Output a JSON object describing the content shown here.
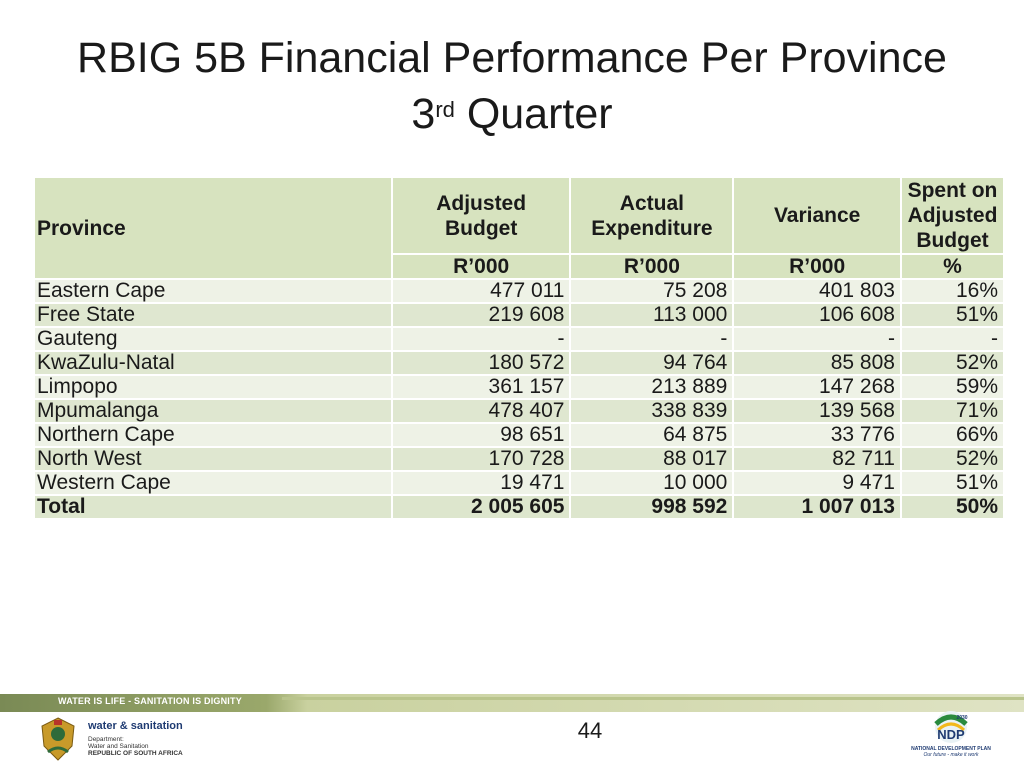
{
  "slide": {
    "title_line1": "RBIG 5B Financial Performance Per Province",
    "title_line2_num": "3",
    "title_line2_sup": "rd",
    "title_line2_rest": " Quarter",
    "page_number": "44"
  },
  "table": {
    "headers": {
      "province": "Province",
      "adjusted_budget": "Adjusted Budget",
      "actual_expenditure": "Actual Expenditure",
      "variance": "Variance",
      "spent_on_budget": "Spent on Adjusted Budget"
    },
    "units": [
      "R’000",
      "R’000",
      "R’000",
      "%"
    ],
    "rows": [
      [
        "Eastern Cape",
        "477 011",
        "75 208",
        "401 803",
        "16%"
      ],
      [
        "Free State",
        "219 608",
        "113 000",
        "106 608",
        "51%"
      ],
      [
        "Gauteng",
        "-",
        "-",
        "-",
        "-"
      ],
      [
        "KwaZulu-Natal",
        "180 572",
        "94 764",
        "85 808",
        "52%"
      ],
      [
        "Limpopo",
        "361 157",
        "213 889",
        "147 268",
        "59%"
      ],
      [
        "Mpumalanga",
        "478 407",
        "338 839",
        "139 568",
        "71%"
      ],
      [
        "Northern Cape",
        "98 651",
        "64 875",
        "33 776",
        "66%"
      ],
      [
        "North West",
        "170 728",
        "88 017",
        "82 711",
        "52%"
      ],
      [
        "Western Cape",
        "19 471",
        "10 000",
        "9 471",
        "51%"
      ]
    ],
    "total": [
      "Total",
      "2 005 605",
      "998 592",
      "1 007 013",
      "50%"
    ]
  },
  "footer": {
    "banner": "WATER IS LIFE - SANITATION IS DIGNITY",
    "dept_title": "water & sanitation",
    "dept_line1": "Department:",
    "dept_line2": "Water and Sanitation",
    "dept_line3": "REPUBLIC OF SOUTH AFRICA",
    "ndp_year": "2030",
    "ndp_mark": "NDP",
    "ndp_name": "NATIONAL DEVELOPMENT PLAN",
    "ndp_tagline": "Our future - make it work"
  },
  "colors": {
    "header_fill": "#d7e3bf",
    "row_light": "#eef2e6",
    "row_dark": "#dfe7d0",
    "footer_green": "#7a8a55"
  }
}
